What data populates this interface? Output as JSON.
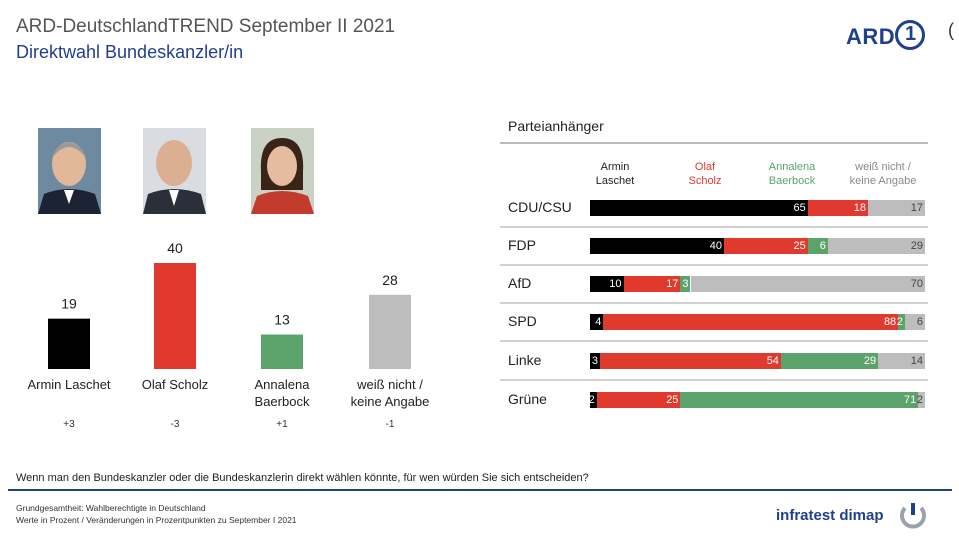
{
  "header": {
    "title": "ARD-DeutschlandTREND September II 2021",
    "subtitle": "Direktwahl Bundeskanzler/in",
    "logo_text": "ARD",
    "logo_mark": "1",
    "edge_glyph": "("
  },
  "colors": {
    "laschet": "#000000",
    "scholz": "#e03a2f",
    "baerbock": "#5ba36b",
    "undecided": "#bdbdbd",
    "brand": "#1f3f8f"
  },
  "chart_data": [
    {
      "type": "bar",
      "title": "",
      "categories": [
        "Armin Laschet",
        "Olaf Scholz",
        "Annalena Baerbock",
        "weiß nicht / keine Angabe"
      ],
      "category_lines": [
        [
          "Armin Laschet"
        ],
        [
          "Olaf Scholz"
        ],
        [
          "Annalena",
          "Baerbock"
        ],
        [
          "weiß nicht /",
          "keine Angabe"
        ]
      ],
      "values": [
        19,
        40,
        13,
        28
      ],
      "changes": [
        "+3",
        "-3",
        "+1",
        "-1"
      ],
      "ylim": [
        0,
        40
      ],
      "grid": false,
      "legend": "none"
    },
    {
      "type": "bar",
      "stacked": true,
      "orientation": "horizontal",
      "title": "Parteianhänger",
      "categories": [
        "CDU/CSU",
        "FDP",
        "AfD",
        "SPD",
        "Linke",
        "Grüne"
      ],
      "series": [
        {
          "name": "Armin Laschet",
          "name_lines": [
            "Armin",
            "Laschet"
          ],
          "color": "#000000",
          "values": [
            65,
            40,
            10,
            4,
            3,
            2
          ]
        },
        {
          "name": "Olaf Scholz",
          "name_lines": [
            "Olaf",
            "Scholz"
          ],
          "color": "#e03a2f",
          "values": [
            18,
            25,
            17,
            88,
            54,
            25
          ]
        },
        {
          "name": "Annalena Baerbock",
          "name_lines": [
            "Annalena",
            "Baerbock"
          ],
          "color": "#5ba36b",
          "values": [
            0,
            6,
            3,
            2,
            29,
            71
          ]
        },
        {
          "name": "weiß nicht / keine Angabe",
          "name_lines": [
            "weiß nicht /",
            "keine Angabe"
          ],
          "color": "#bdbdbd",
          "values": [
            17,
            29,
            70,
            6,
            14,
            2
          ]
        }
      ],
      "xlim": [
        0,
        100
      ],
      "legend": "top"
    }
  ],
  "footer": {
    "question": "Wenn man den Bundeskanzler oder die Bundeskanzlerin direkt wählen könnte, für wen würden Sie sich entscheiden?",
    "note1": "Grundgesamtheit: Wahlberechtigte in Deutschland",
    "note2": "Werte in Prozent / Veränderungen in Prozentpunkten zu September I 2021",
    "brand": "infratest dimap"
  }
}
